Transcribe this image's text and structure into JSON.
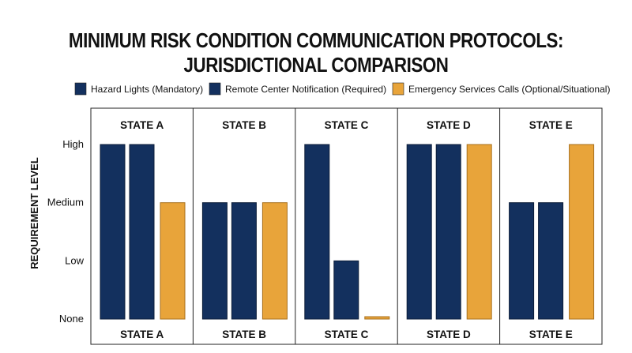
{
  "chart_data": {
    "type": "bar",
    "title_lines": [
      "MINIMUM RISK CONDITION COMMUNICATION PROTOCOLS:",
      "JURISDICTIONAL COMPARISON"
    ],
    "ylabel": "REQUIREMENT LEVEL",
    "y_levels": [
      "None",
      "Low",
      "Medium",
      "High"
    ],
    "ylim": [
      0,
      3
    ],
    "categories": [
      "STATE A",
      "STATE B",
      "STATE C",
      "STATE D",
      "STATE E"
    ],
    "series": [
      {
        "name": "Hazard Lights (Mandatory)",
        "color": "#13305e",
        "values": [
          3,
          2,
          3,
          3,
          2
        ]
      },
      {
        "name": "Remote Center Notification (Required)",
        "color": "#13305e",
        "values": [
          3,
          2,
          1,
          3,
          2
        ]
      },
      {
        "name": "Emergency Services Calls (Optional/Situational)",
        "color": "#e8a43a",
        "values": [
          2,
          2,
          0,
          3,
          3
        ]
      }
    ],
    "legend_position": "top",
    "grid": false
  }
}
